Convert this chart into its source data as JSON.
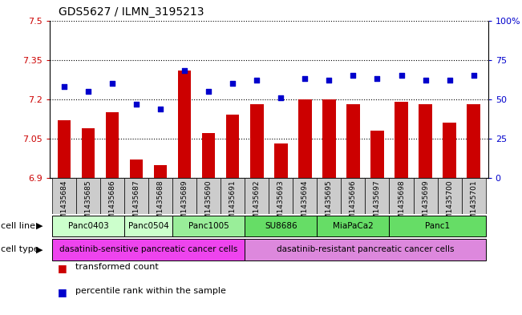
{
  "title": "GDS5627 / ILMN_3195213",
  "samples": [
    "GSM1435684",
    "GSM1435685",
    "GSM1435686",
    "GSM1435687",
    "GSM1435688",
    "GSM1435689",
    "GSM1435690",
    "GSM1435691",
    "GSM1435692",
    "GSM1435693",
    "GSM1435694",
    "GSM1435695",
    "GSM1435696",
    "GSM1435697",
    "GSM1435698",
    "GSM1435699",
    "GSM1435700",
    "GSM1435701"
  ],
  "bar_values": [
    7.12,
    7.09,
    7.15,
    6.97,
    6.95,
    7.31,
    7.07,
    7.14,
    7.18,
    7.03,
    7.2,
    7.2,
    7.18,
    7.08,
    7.19,
    7.18,
    7.11,
    7.18
  ],
  "dot_values": [
    58,
    55,
    60,
    47,
    44,
    68,
    55,
    60,
    62,
    51,
    63,
    62,
    65,
    63,
    65,
    62,
    62,
    65
  ],
  "bar_color": "#cc0000",
  "dot_color": "#0000cc",
  "ylim_left": [
    6.9,
    7.5
  ],
  "ylim_right": [
    0,
    100
  ],
  "yticks_left": [
    6.9,
    7.05,
    7.2,
    7.35,
    7.5
  ],
  "yticks_right": [
    0,
    25,
    50,
    75,
    100
  ],
  "ytick_labels_left": [
    "6.9",
    "7.05",
    "7.2",
    "7.35",
    "7.5"
  ],
  "ytick_labels_right": [
    "0",
    "25",
    "50",
    "75",
    "100%"
  ],
  "cell_lines": [
    {
      "label": "Panc0403",
      "start": 0,
      "end": 2,
      "color": "#ccffcc"
    },
    {
      "label": "Panc0504",
      "start": 3,
      "end": 4,
      "color": "#ccffcc"
    },
    {
      "label": "Panc1005",
      "start": 5,
      "end": 7,
      "color": "#99ee99"
    },
    {
      "label": "SU8686",
      "start": 8,
      "end": 10,
      "color": "#66dd66"
    },
    {
      "label": "MiaPaCa2",
      "start": 11,
      "end": 13,
      "color": "#66dd66"
    },
    {
      "label": "Panc1",
      "start": 14,
      "end": 17,
      "color": "#66dd66"
    }
  ],
  "cell_types": [
    {
      "label": "dasatinib-sensitive pancreatic cancer cells",
      "start": 0,
      "end": 7,
      "color": "#ee44ee"
    },
    {
      "label": "dasatinib-resistant pancreatic cancer cells",
      "start": 8,
      "end": 17,
      "color": "#dd88dd"
    }
  ],
  "legend_items": [
    {
      "label": "transformed count",
      "color": "#cc0000"
    },
    {
      "label": "percentile rank within the sample",
      "color": "#0000cc"
    }
  ],
  "cell_line_label": "cell line",
  "cell_type_label": "cell type",
  "background_color": "#ffffff",
  "bar_width": 0.55,
  "xtick_bg": "#cccccc"
}
